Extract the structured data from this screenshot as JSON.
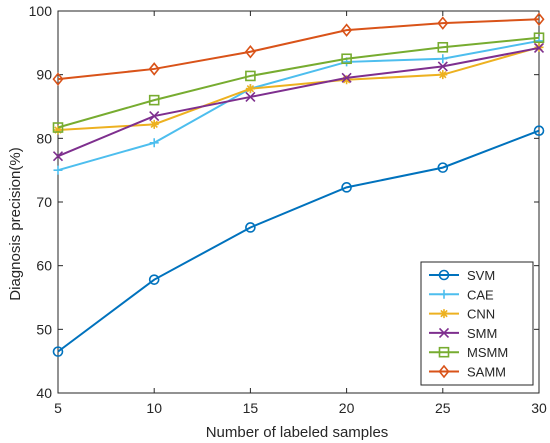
{
  "chart_data": {
    "type": "line",
    "title": "",
    "xlabel": "Number of labeled samples",
    "ylabel": "Diagnosis precision(%)",
    "x": [
      5,
      10,
      15,
      20,
      25,
      30
    ],
    "xticks": [
      "5",
      "10",
      "15",
      "20",
      "25",
      "30"
    ],
    "yticks": [
      "40",
      "50",
      "60",
      "70",
      "80",
      "90",
      "100"
    ],
    "xlim": [
      5,
      30
    ],
    "ylim": [
      40,
      100
    ],
    "grid": false,
    "legend_position": "bottom-right",
    "series": [
      {
        "name": "SVM",
        "color": "#0072BD",
        "marker": "circle",
        "values": [
          46.5,
          57.8,
          66.0,
          72.3,
          75.4,
          81.2
        ]
      },
      {
        "name": "CAE",
        "color": "#4DBEEE",
        "marker": "plus",
        "values": [
          75.0,
          79.3,
          87.8,
          92.0,
          92.5,
          95.3
        ]
      },
      {
        "name": "CNN",
        "color": "#EDB120",
        "marker": "asterisk",
        "values": [
          81.3,
          82.2,
          87.8,
          89.2,
          90.0,
          94.3
        ]
      },
      {
        "name": "SMM",
        "color": "#7E2F8E",
        "marker": "x",
        "values": [
          77.2,
          83.5,
          86.5,
          89.5,
          91.3,
          94.2
        ]
      },
      {
        "name": "MSMM",
        "color": "#77AC30",
        "marker": "square",
        "values": [
          81.7,
          86.0,
          89.8,
          92.5,
          94.3,
          95.8
        ]
      },
      {
        "name": "SAMM",
        "color": "#D95319",
        "marker": "diamond",
        "values": [
          89.3,
          90.9,
          93.6,
          97.0,
          98.1,
          98.7
        ]
      }
    ]
  }
}
